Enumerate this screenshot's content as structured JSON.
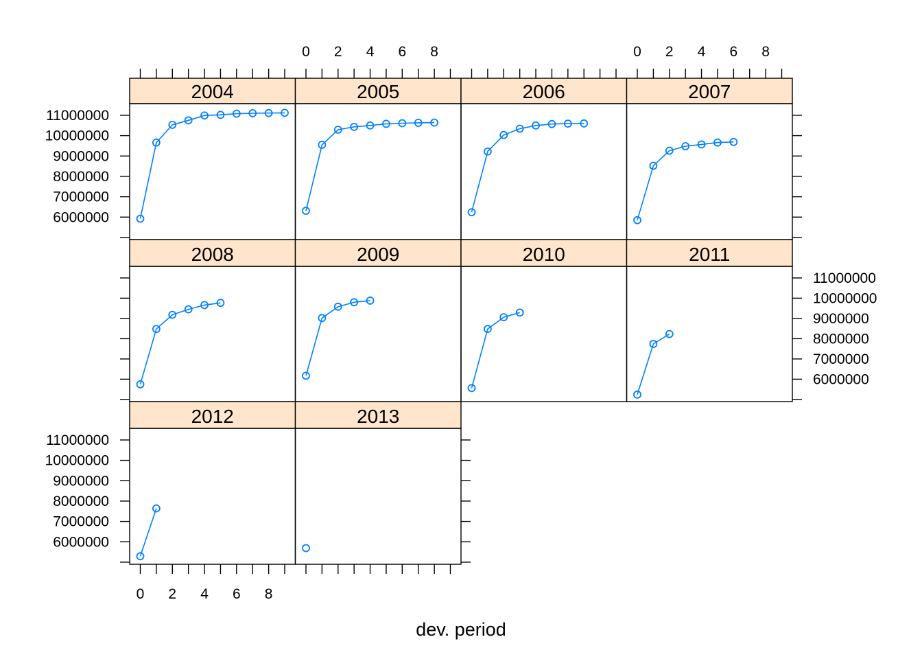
{
  "chart_data": {
    "type": "line",
    "layout": "trellis",
    "xlabel": "dev. period",
    "ylabel": "",
    "xlim": [
      0,
      9
    ],
    "ylim": [
      5200000,
      11200000
    ],
    "x_ticks": [
      0,
      2,
      4,
      6,
      8
    ],
    "y_ticks": [
      6000000,
      7000000,
      8000000,
      9000000,
      10000000,
      11000000
    ],
    "x_tick_labels": [
      "0",
      "2",
      "4",
      "6",
      "8"
    ],
    "y_tick_labels": [
      "6000000",
      "7000000",
      "8000000",
      "9000000",
      "10000000",
      "11000000"
    ],
    "grid": false,
    "legend": "none",
    "series_color": "#0080ff",
    "panels": [
      {
        "name": "2004",
        "x": [
          0,
          1,
          2,
          3,
          4,
          5,
          6,
          7,
          8,
          9
        ],
        "values": [
          5920000,
          9660000,
          10530000,
          10750000,
          10990000,
          11020000,
          11080000,
          11100000,
          11110000,
          11120000
        ]
      },
      {
        "name": "2005",
        "x": [
          0,
          1,
          2,
          3,
          4,
          5,
          6,
          7,
          8
        ],
        "values": [
          6310000,
          9550000,
          10290000,
          10430000,
          10500000,
          10580000,
          10610000,
          10630000,
          10640000
        ]
      },
      {
        "name": "2006",
        "x": [
          0,
          1,
          2,
          3,
          4,
          5,
          6,
          7
        ],
        "values": [
          6240000,
          9220000,
          10030000,
          10340000,
          10500000,
          10570000,
          10590000,
          10600000
        ]
      },
      {
        "name": "2007",
        "x": [
          0,
          1,
          2,
          3,
          4,
          5,
          6
        ],
        "values": [
          5850000,
          8520000,
          9260000,
          9480000,
          9570000,
          9660000,
          9690000
        ]
      },
      {
        "name": "2008",
        "x": [
          0,
          1,
          2,
          3,
          4,
          5
        ],
        "values": [
          5750000,
          8480000,
          9180000,
          9450000,
          9660000,
          9770000
        ]
      },
      {
        "name": "2009",
        "x": [
          0,
          1,
          2,
          3,
          4
        ],
        "values": [
          6170000,
          9020000,
          9580000,
          9800000,
          9880000
        ]
      },
      {
        "name": "2010",
        "x": [
          0,
          1,
          2,
          3
        ],
        "values": [
          5560000,
          8480000,
          9060000,
          9290000
        ]
      },
      {
        "name": "2011",
        "x": [
          0,
          1,
          2
        ],
        "values": [
          5240000,
          7740000,
          8230000
        ]
      },
      {
        "name": "2012",
        "x": [
          0,
          1
        ],
        "values": [
          5290000,
          7640000
        ]
      },
      {
        "name": "2013",
        "x": [
          0
        ],
        "values": [
          5690000
        ]
      }
    ]
  }
}
